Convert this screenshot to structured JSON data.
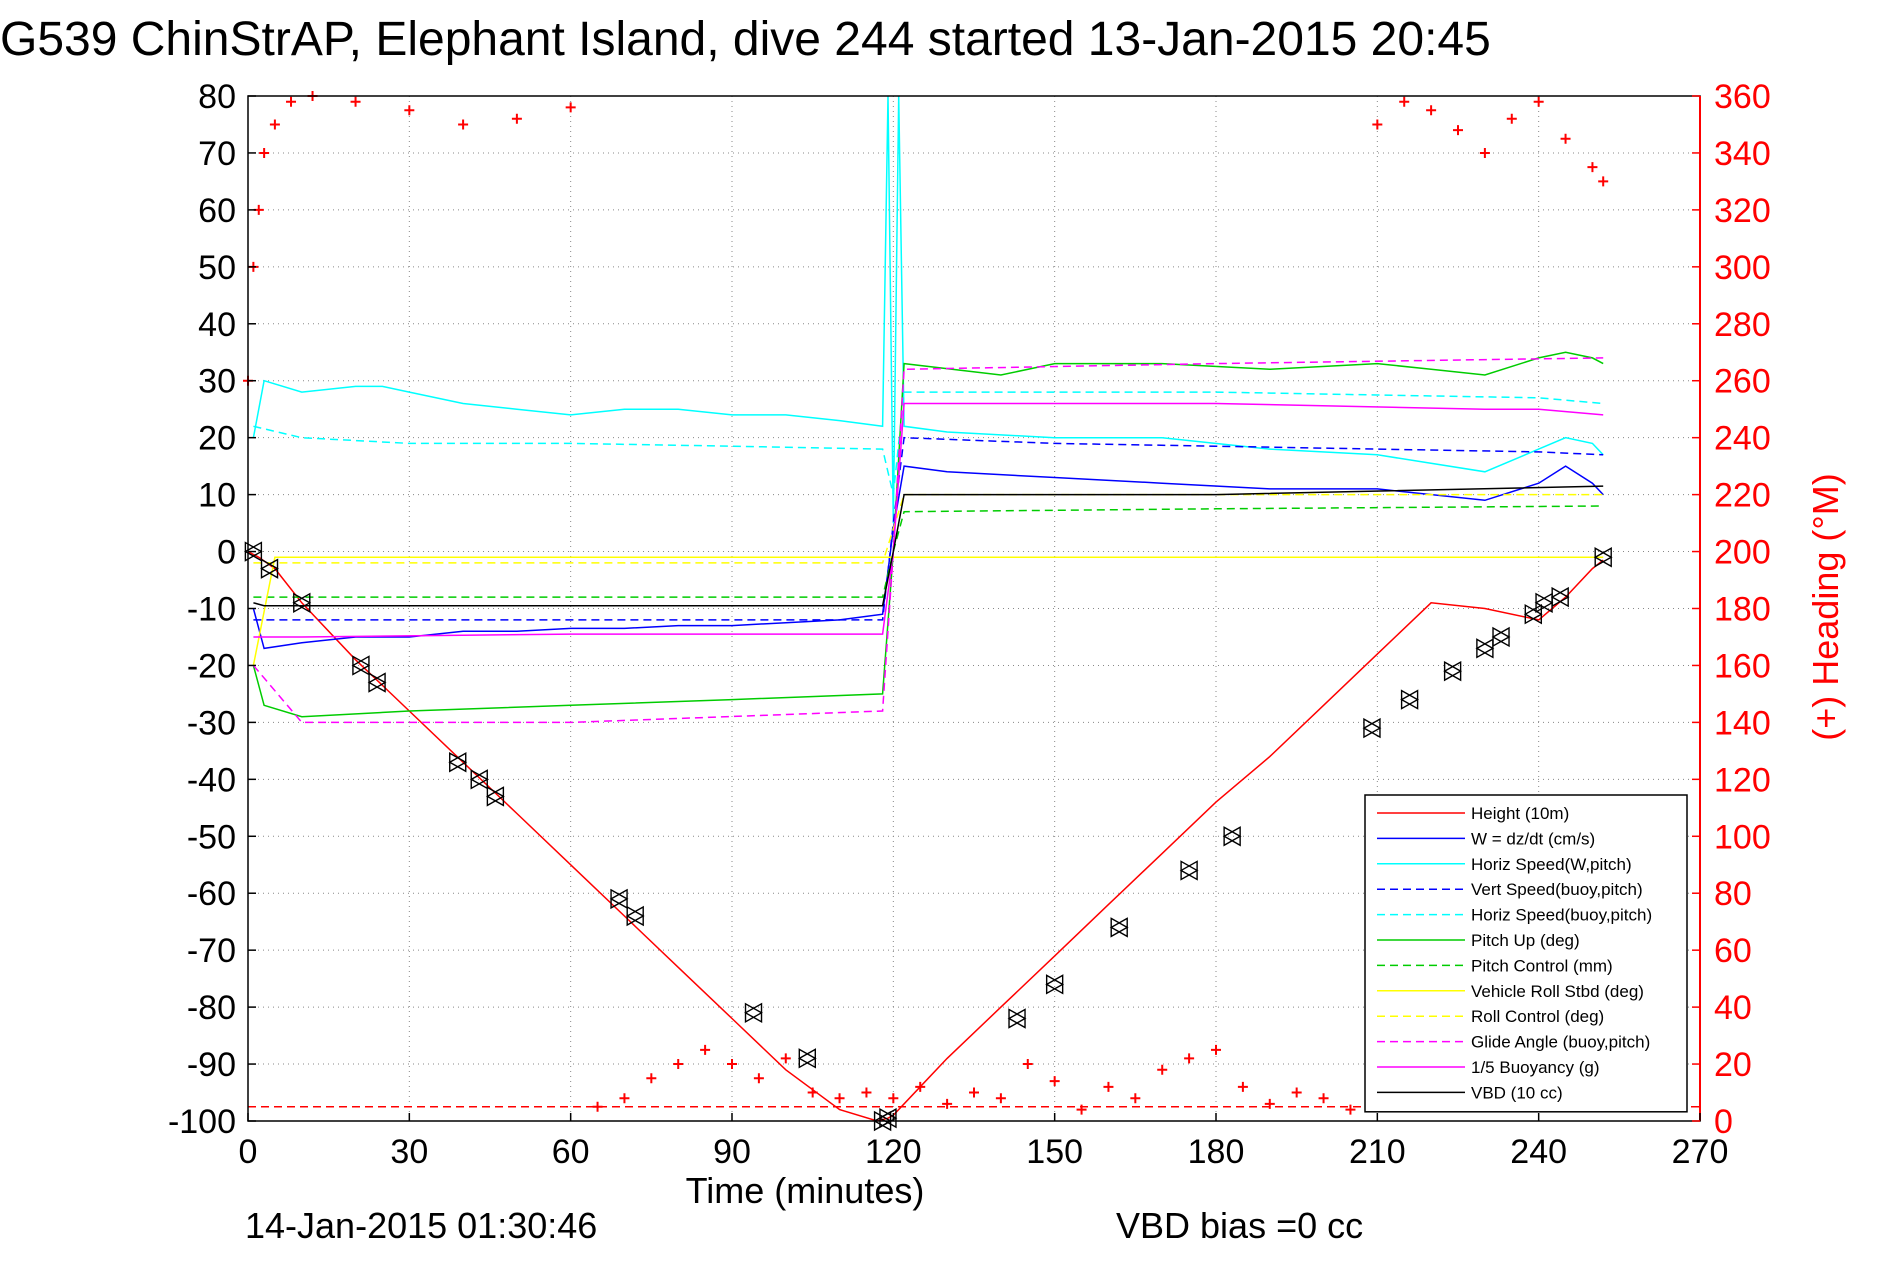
{
  "chart_data": {
    "type": "line",
    "title": "G539 ChinStrAP, Elephant Island, dive 244 started 13-Jan-2015 20:45",
    "xlabel": "Time (minutes)",
    "ylabel_right": "(+) Heading (°M)",
    "xlim": [
      0,
      270
    ],
    "ylim": [
      -100,
      80
    ],
    "ylim_right": [
      0,
      360
    ],
    "xticks": [
      "0",
      "30",
      "60",
      "90",
      "120",
      "150",
      "180",
      "210",
      "240",
      "270"
    ],
    "yticks": [
      "80",
      "70",
      "60",
      "50",
      "40",
      "30",
      "20",
      "10",
      "0",
      "-10",
      "-20",
      "-30",
      "-40",
      "-50",
      "-60",
      "-70",
      "-80",
      "-90",
      "-100"
    ],
    "yticks_right": [
      "360",
      "340",
      "320",
      "300",
      "280",
      "260",
      "240",
      "220",
      "200",
      "180",
      "160",
      "140",
      "120",
      "100",
      "80",
      "60",
      "40",
      "20",
      "0"
    ],
    "grid": true,
    "legend_position": "bottom-right",
    "footer_left": "14-Jan-2015 01:30:46",
    "footer_right": "VBD bias =0 cc",
    "series": [
      {
        "name": "Height (10m)",
        "color": "#ff0000",
        "style": "solid",
        "x": [
          0,
          2,
          5,
          10,
          20,
          30,
          40,
          50,
          60,
          70,
          80,
          90,
          100,
          110,
          117,
          119,
          120,
          125,
          130,
          140,
          150,
          160,
          170,
          180,
          190,
          200,
          210,
          220,
          230,
          240,
          245,
          250,
          252
        ],
        "y": [
          0,
          -1,
          -3,
          -9,
          -19,
          -28,
          -37,
          -46,
          -55,
          -64,
          -73,
          -82,
          -91,
          -98,
          -100,
          -99.5,
          -99,
          -94,
          -89,
          -80,
          -71,
          -62,
          -53,
          -44,
          -36,
          -27,
          -18,
          -9,
          -10,
          -12,
          -8,
          -3,
          -1.5
        ]
      },
      {
        "name": "W = dz/dt (cm/s)",
        "color": "#0000ff",
        "style": "solid",
        "x": [
          1,
          3,
          10,
          20,
          30,
          40,
          50,
          60,
          70,
          80,
          90,
          100,
          110,
          118,
          120,
          122,
          130,
          150,
          170,
          190,
          210,
          230,
          240,
          245,
          250,
          252
        ],
        "y": [
          -10,
          -17,
          -16,
          -15,
          -15,
          -14,
          -14,
          -13.5,
          -13.5,
          -13,
          -13,
          -12.5,
          -12,
          -11,
          4,
          15,
          14,
          13,
          12,
          11,
          11,
          9,
          12,
          15,
          12,
          10
        ]
      },
      {
        "name": "Horiz Speed(W,pitch)",
        "color": "#00ffff",
        "style": "solid",
        "x": [
          1,
          3,
          10,
          20,
          25,
          30,
          40,
          50,
          60,
          70,
          80,
          90,
          100,
          110,
          118,
          119,
          120,
          121,
          122,
          130,
          150,
          170,
          190,
          210,
          230,
          240,
          245,
          250,
          252
        ],
        "y": [
          20,
          30,
          28,
          29,
          29,
          28,
          26,
          25,
          24,
          25,
          25,
          24,
          24,
          23,
          22,
          80,
          5,
          80,
          22,
          21,
          20,
          20,
          18,
          17,
          14,
          18,
          20,
          19,
          17
        ]
      },
      {
        "name": "Vert Speed(buoy,pitch)",
        "color": "#0000ff",
        "style": "dashed",
        "x": [
          1,
          10,
          30,
          60,
          90,
          118,
          120,
          122,
          150,
          180,
          210,
          240,
          252
        ],
        "y": [
          -12,
          -12,
          -12,
          -12,
          -12,
          -12,
          5,
          20,
          19,
          18.5,
          18,
          17.5,
          17
        ]
      },
      {
        "name": "Horiz Speed(buoy,pitch)",
        "color": "#00ffff",
        "style": "dashed",
        "x": [
          1,
          10,
          30,
          60,
          90,
          118,
          120,
          122,
          150,
          180,
          210,
          240,
          252
        ],
        "y": [
          22,
          20,
          19,
          19,
          18.5,
          18,
          10,
          28,
          28,
          28,
          27.5,
          27,
          26
        ]
      },
      {
        "name": "Pitch Up (deg)",
        "color": "#00cc00",
        "style": "solid",
        "x": [
          1,
          3,
          10,
          30,
          60,
          90,
          118,
          120,
          122,
          140,
          150,
          170,
          190,
          210,
          220,
          230,
          240,
          245,
          250,
          252
        ],
        "y": [
          -20,
          -27,
          -29,
          -28,
          -27,
          -26,
          -25,
          0,
          33,
          31,
          33,
          33,
          32,
          33,
          32,
          31,
          34,
          35,
          34,
          33
        ]
      },
      {
        "name": "Pitch Control (mm)",
        "color": "#00cc00",
        "style": "dashed",
        "x": [
          1,
          10,
          60,
          118,
          120,
          122,
          180,
          252
        ],
        "y": [
          -8,
          -8,
          -8,
          -8,
          0,
          7,
          7.5,
          8
        ]
      },
      {
        "name": "Vehicle Roll Stbd (deg)",
        "color": "#ffff00",
        "style": "solid",
        "x": [
          1,
          5,
          10,
          20,
          30,
          40,
          60,
          70,
          90,
          100,
          118,
          120,
          122,
          140,
          160,
          180,
          200,
          210,
          230,
          240,
          252
        ],
        "y": [
          -20,
          -1,
          -1,
          -1,
          -1,
          -1,
          -1,
          -1,
          -1,
          -1,
          -1,
          -1,
          -1,
          -1,
          -1,
          -1,
          -1,
          -1,
          -1,
          -1,
          -1
        ]
      },
      {
        "name": "Roll Control (deg)",
        "color": "#ffff00",
        "style": "dashed",
        "x": [
          1,
          10,
          60,
          118,
          122,
          180,
          252
        ],
        "y": [
          -2,
          -2,
          -2,
          -2,
          10,
          10,
          10
        ]
      },
      {
        "name": "Glide Angle (buoy,pitch)",
        "color": "#ff00ff",
        "style": "dashed",
        "x": [
          1,
          10,
          60,
          118,
          120,
          122,
          180,
          252
        ],
        "y": [
          -20,
          -30,
          -30,
          -28,
          0,
          32,
          33,
          34
        ]
      },
      {
        "name": "1/5 Buoyancy (g)",
        "color": "#ff00ff",
        "style": "solid",
        "x": [
          1,
          5,
          10,
          60,
          118,
          120,
          122,
          180,
          230,
          240,
          252
        ],
        "y": [
          -15,
          -15,
          -15,
          -14.5,
          -14.5,
          0,
          26,
          26,
          25,
          25,
          24
        ]
      },
      {
        "name": "VBD (10 cc)",
        "color": "#000000",
        "style": "solid",
        "x": [
          1,
          3,
          10,
          60,
          118,
          120,
          122,
          180,
          252
        ],
        "y": [
          -9,
          -9.5,
          -9.5,
          -9.5,
          -9.5,
          0,
          10,
          10,
          11.5
        ]
      }
    ],
    "heading_series": {
      "axis": "right",
      "color": "#ff0000",
      "marker": "+",
      "reference_line_deg": 5,
      "x": [
        0,
        1,
        2,
        3,
        5,
        8,
        12,
        20,
        30,
        40,
        50,
        60,
        65,
        70,
        75,
        80,
        85,
        90,
        95,
        100,
        105,
        110,
        115,
        120,
        125,
        130,
        135,
        140,
        145,
        150,
        155,
        160,
        165,
        170,
        175,
        180,
        185,
        190,
        195,
        200,
        205,
        210,
        215,
        220,
        225,
        230,
        235,
        240,
        245,
        250,
        252
      ],
      "y": [
        260,
        300,
        320,
        340,
        350,
        358,
        360,
        358,
        355,
        350,
        352,
        356,
        5,
        8,
        15,
        20,
        25,
        20,
        15,
        22,
        10,
        8,
        10,
        8,
        12,
        6,
        10,
        8,
        20,
        14,
        4,
        12,
        8,
        18,
        22,
        25,
        12,
        6,
        10,
        8,
        4,
        350,
        358,
        355,
        348,
        340,
        352,
        358,
        345,
        335,
        330
      ]
    },
    "markers": {
      "x": [
        1,
        4,
        10,
        21,
        24,
        39,
        43,
        46,
        69,
        72,
        94,
        104,
        118,
        119,
        143,
        150,
        162,
        175,
        183,
        209,
        216,
        224,
        230,
        233,
        239,
        241,
        244,
        252
      ],
      "y": [
        0,
        -3,
        -9,
        -20,
        -23,
        -37,
        -40,
        -43,
        -61,
        -64,
        -81,
        -89,
        -100,
        -99.5,
        -82,
        -76,
        -66,
        -56,
        -50,
        -31,
        -26,
        -21,
        -17,
        -15,
        -11,
        -9,
        -8,
        -1
      ]
    }
  }
}
